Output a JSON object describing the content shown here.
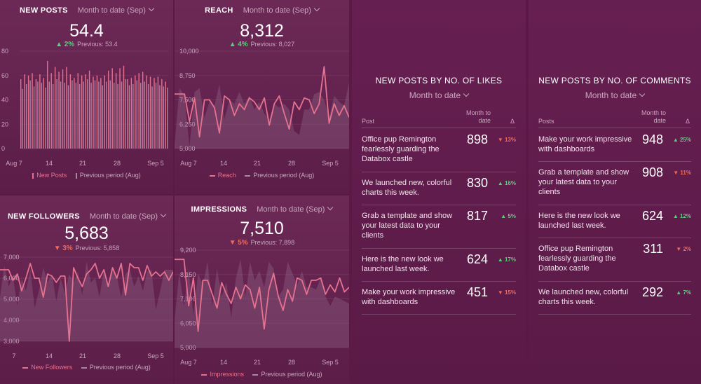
{
  "colors": {
    "accent": "#e5728e",
    "previous": "#a8879f",
    "up": "#56d27a",
    "down": "#f26a55"
  },
  "new_posts": {
    "title": "NEW POSTS",
    "period": "Month to date (Sep)",
    "value": "54.4",
    "delta_dir": "up",
    "delta": "2%",
    "previous": "Previous: 53.4",
    "legend_current": "New Posts",
    "legend_previous": "Previous period (Aug)",
    "y_ticks": [
      "80",
      "60",
      "40",
      "20",
      "0"
    ],
    "x_ticks": [
      "Aug 7",
      "14",
      "21",
      "28",
      "Sep 5"
    ]
  },
  "reach": {
    "title": "REACH",
    "period": "Month to date (Sep)",
    "value": "8,312",
    "delta_dir": "up",
    "delta": "4%",
    "previous": "Previous: 8,027",
    "legend_current": "Reach",
    "legend_previous": "Previous period (Aug)",
    "y_ticks": [
      "10,000",
      "8,750",
      "7,500",
      "6,250",
      "5,000"
    ],
    "x_ticks": [
      "Aug 7",
      "14",
      "21",
      "28",
      "Sep 5"
    ]
  },
  "new_followers": {
    "title": "NEW FOLLOWERS",
    "period": "Month to date (Sep)",
    "value": "5,683",
    "delta_dir": "down",
    "delta": "3%",
    "previous": "Previous: 5,858",
    "legend_current": "New Followers",
    "legend_previous": "Previous period (Aug)",
    "y_ticks": [
      "7,000",
      "6,000",
      "5,000",
      "4,000",
      "3,000"
    ],
    "x_ticks": [
      "7",
      "14",
      "21",
      "28",
      "Sep 5"
    ]
  },
  "impressions": {
    "title": "IMPRESSIONS",
    "period": "Month to date (Sep)",
    "value": "7,510",
    "delta_dir": "down",
    "delta": "5%",
    "previous": "Previous: 7,898",
    "legend_current": "Impressions",
    "legend_previous": "Previous period (Aug)",
    "y_ticks": [
      "9,200",
      "8,150",
      "7,100",
      "6,050",
      "5,000"
    ],
    "x_ticks": [
      "Aug 7",
      "14",
      "21",
      "28",
      "Sep 5"
    ]
  },
  "likes_table": {
    "title": "NEW POSTS BY NO. OF LIKES",
    "period": "Month to date",
    "col_post": "Post",
    "col_value": "Month to date",
    "col_delta": "Δ",
    "rows": [
      {
        "post": "Office pup Remington fearlessly guarding the Databox castle",
        "value": "898",
        "dir": "down",
        "delta": "13%"
      },
      {
        "post": "We launched new, colorful charts this week.",
        "value": "830",
        "dir": "up",
        "delta": "16%"
      },
      {
        "post": "Grab a template and show your latest data to your clients",
        "value": "817",
        "dir": "up",
        "delta": "5%"
      },
      {
        "post": "Here is the new look we launched last week.",
        "value": "624",
        "dir": "up",
        "delta": "17%"
      },
      {
        "post": "Make your work impressive with dashboards",
        "value": "451",
        "dir": "down",
        "delta": "15%"
      }
    ]
  },
  "comments_table": {
    "title": "NEW POSTS BY NO. OF COMMENTS",
    "period": "Month to date",
    "col_post": "Posts",
    "col_value": "Month to date",
    "col_delta": "Δ",
    "rows": [
      {
        "post": "Make your work impressive with dashboards",
        "value": "948",
        "dir": "up",
        "delta": "25%"
      },
      {
        "post": "Grab a template and show your latest data to your clients",
        "value": "908",
        "dir": "down",
        "delta": "11%"
      },
      {
        "post": "Here is the new look we launched last week.",
        "value": "624",
        "dir": "up",
        "delta": "12%"
      },
      {
        "post": "Office pup Remington fearlessly guarding the Databox castle",
        "value": "311",
        "dir": "down",
        "delta": "2%"
      },
      {
        "post": "We launched new, colorful charts this week.",
        "value": "292",
        "dir": "up",
        "delta": "7%"
      }
    ]
  },
  "chart_data": [
    {
      "type": "bar",
      "ylim": [
        0,
        80
      ],
      "x_ticks": [
        "Aug 7",
        "14",
        "21",
        "28",
        "Sep 5"
      ],
      "series": [
        {
          "name": "New Posts",
          "values": [
            57,
            61,
            60,
            62,
            57,
            61,
            58,
            72,
            62,
            67,
            63,
            65,
            67,
            61,
            58,
            62,
            60,
            61,
            64,
            59,
            60,
            58,
            60,
            64,
            66,
            62,
            66,
            68,
            57,
            58,
            60,
            62,
            63,
            60,
            59,
            58,
            59,
            57,
            55
          ]
        },
        {
          "name": "Previous period (Aug)",
          "values": [
            49,
            53,
            56,
            51,
            55,
            54,
            50,
            55,
            53,
            57,
            55,
            54,
            52,
            56,
            54,
            53,
            55,
            57,
            54,
            56,
            55,
            52,
            55,
            56,
            54,
            53,
            55,
            57,
            52,
            53,
            56,
            54,
            55,
            53,
            51,
            54,
            52,
            51,
            50
          ]
        }
      ]
    },
    {
      "type": "area",
      "ylim": [
        5000,
        10000
      ],
      "x_ticks": [
        "Aug 7",
        "14",
        "21",
        "28",
        "Sep 5"
      ],
      "series": [
        {
          "name": "Reach",
          "values": [
            7800,
            7800,
            7800,
            6400,
            7600,
            5600,
            7500,
            7500,
            7100,
            5800,
            7700,
            7500,
            6700,
            7300,
            7000,
            7600,
            7400,
            7000,
            7600,
            6200,
            7300,
            7700,
            6800,
            6000,
            7400,
            7000,
            7600,
            7500,
            6800,
            7300,
            9200,
            6300,
            7300,
            6700,
            7200,
            6600
          ]
        },
        {
          "name": "Previous period (Aug)",
          "values": [
            5200,
            8100,
            7700,
            5100,
            7900,
            8100,
            6600,
            7400,
            7200,
            8300,
            6500,
            7500,
            7300,
            7900,
            7300,
            7700,
            7000,
            7400,
            6800,
            6500,
            7300,
            7100,
            7300,
            7000,
            5900,
            5700,
            7000,
            7000,
            7800,
            7900,
            7500,
            6600,
            7700,
            7400,
            7200,
            8400
          ]
        }
      ]
    },
    {
      "type": "area",
      "ylim": [
        3000,
        7000
      ],
      "x_ticks": [
        "7",
        "14",
        "21",
        "28",
        "Sep 5"
      ],
      "series": [
        {
          "name": "New Followers",
          "values": [
            6400,
            6400,
            6400,
            5900,
            6200,
            5400,
            6000,
            6700,
            6000,
            6000,
            5100,
            6200,
            6100,
            5800,
            6100,
            6100,
            3000,
            6500,
            6000,
            5600,
            6200,
            6400,
            6700,
            6000,
            6400,
            5600,
            6500,
            6000,
            6700,
            5200,
            6700,
            6500,
            6500,
            5900,
            6600,
            6100,
            6300,
            6100,
            6300,
            5900,
            6300
          ]
        },
        {
          "name": "Previous period (Aug)",
          "values": [
            5100,
            6600,
            5600,
            6100,
            4700,
            6000,
            5400,
            6400,
            4600,
            5400,
            6500,
            5800,
            6200,
            4900,
            6000,
            5300,
            6200,
            5800,
            6300,
            5200,
            6800,
            5800,
            6000,
            5100,
            6400,
            5500,
            6500,
            6100,
            5100,
            6200,
            6400,
            5600,
            6100,
            5400,
            6300,
            6400,
            4500,
            5400,
            6400,
            6400,
            6400
          ]
        }
      ]
    },
    {
      "type": "area",
      "ylim": [
        5000,
        9200
      ],
      "x_ticks": [
        "Aug 7",
        "14",
        "21",
        "28",
        "Sep 5"
      ],
      "series": [
        {
          "name": "Impressions",
          "values": [
            8800,
            8800,
            8800,
            6800,
            8000,
            5700,
            7900,
            7900,
            7300,
            6700,
            7800,
            7300,
            6900,
            7600,
            7100,
            7700,
            7500,
            6700,
            7600,
            5800,
            7500,
            8200,
            7200,
            6600,
            7500,
            7000,
            8000,
            7900,
            7300,
            7900,
            7900,
            8000,
            7300,
            7700,
            7400,
            8000,
            7400,
            7600
          ]
        },
        {
          "name": "Previous period (Aug)",
          "values": [
            6200,
            8200,
            6800,
            8400,
            6400,
            8200,
            7700,
            8700,
            6800,
            8400,
            7200,
            7800,
            6300,
            8000,
            8800,
            7200,
            8700,
            7900,
            8300,
            7600,
            8700,
            8400,
            7200,
            7500,
            8700,
            8200,
            7700,
            8300,
            7600,
            7600,
            7500,
            8000,
            7200,
            6800,
            7200,
            7100,
            7000,
            6900
          ]
        }
      ]
    }
  ]
}
